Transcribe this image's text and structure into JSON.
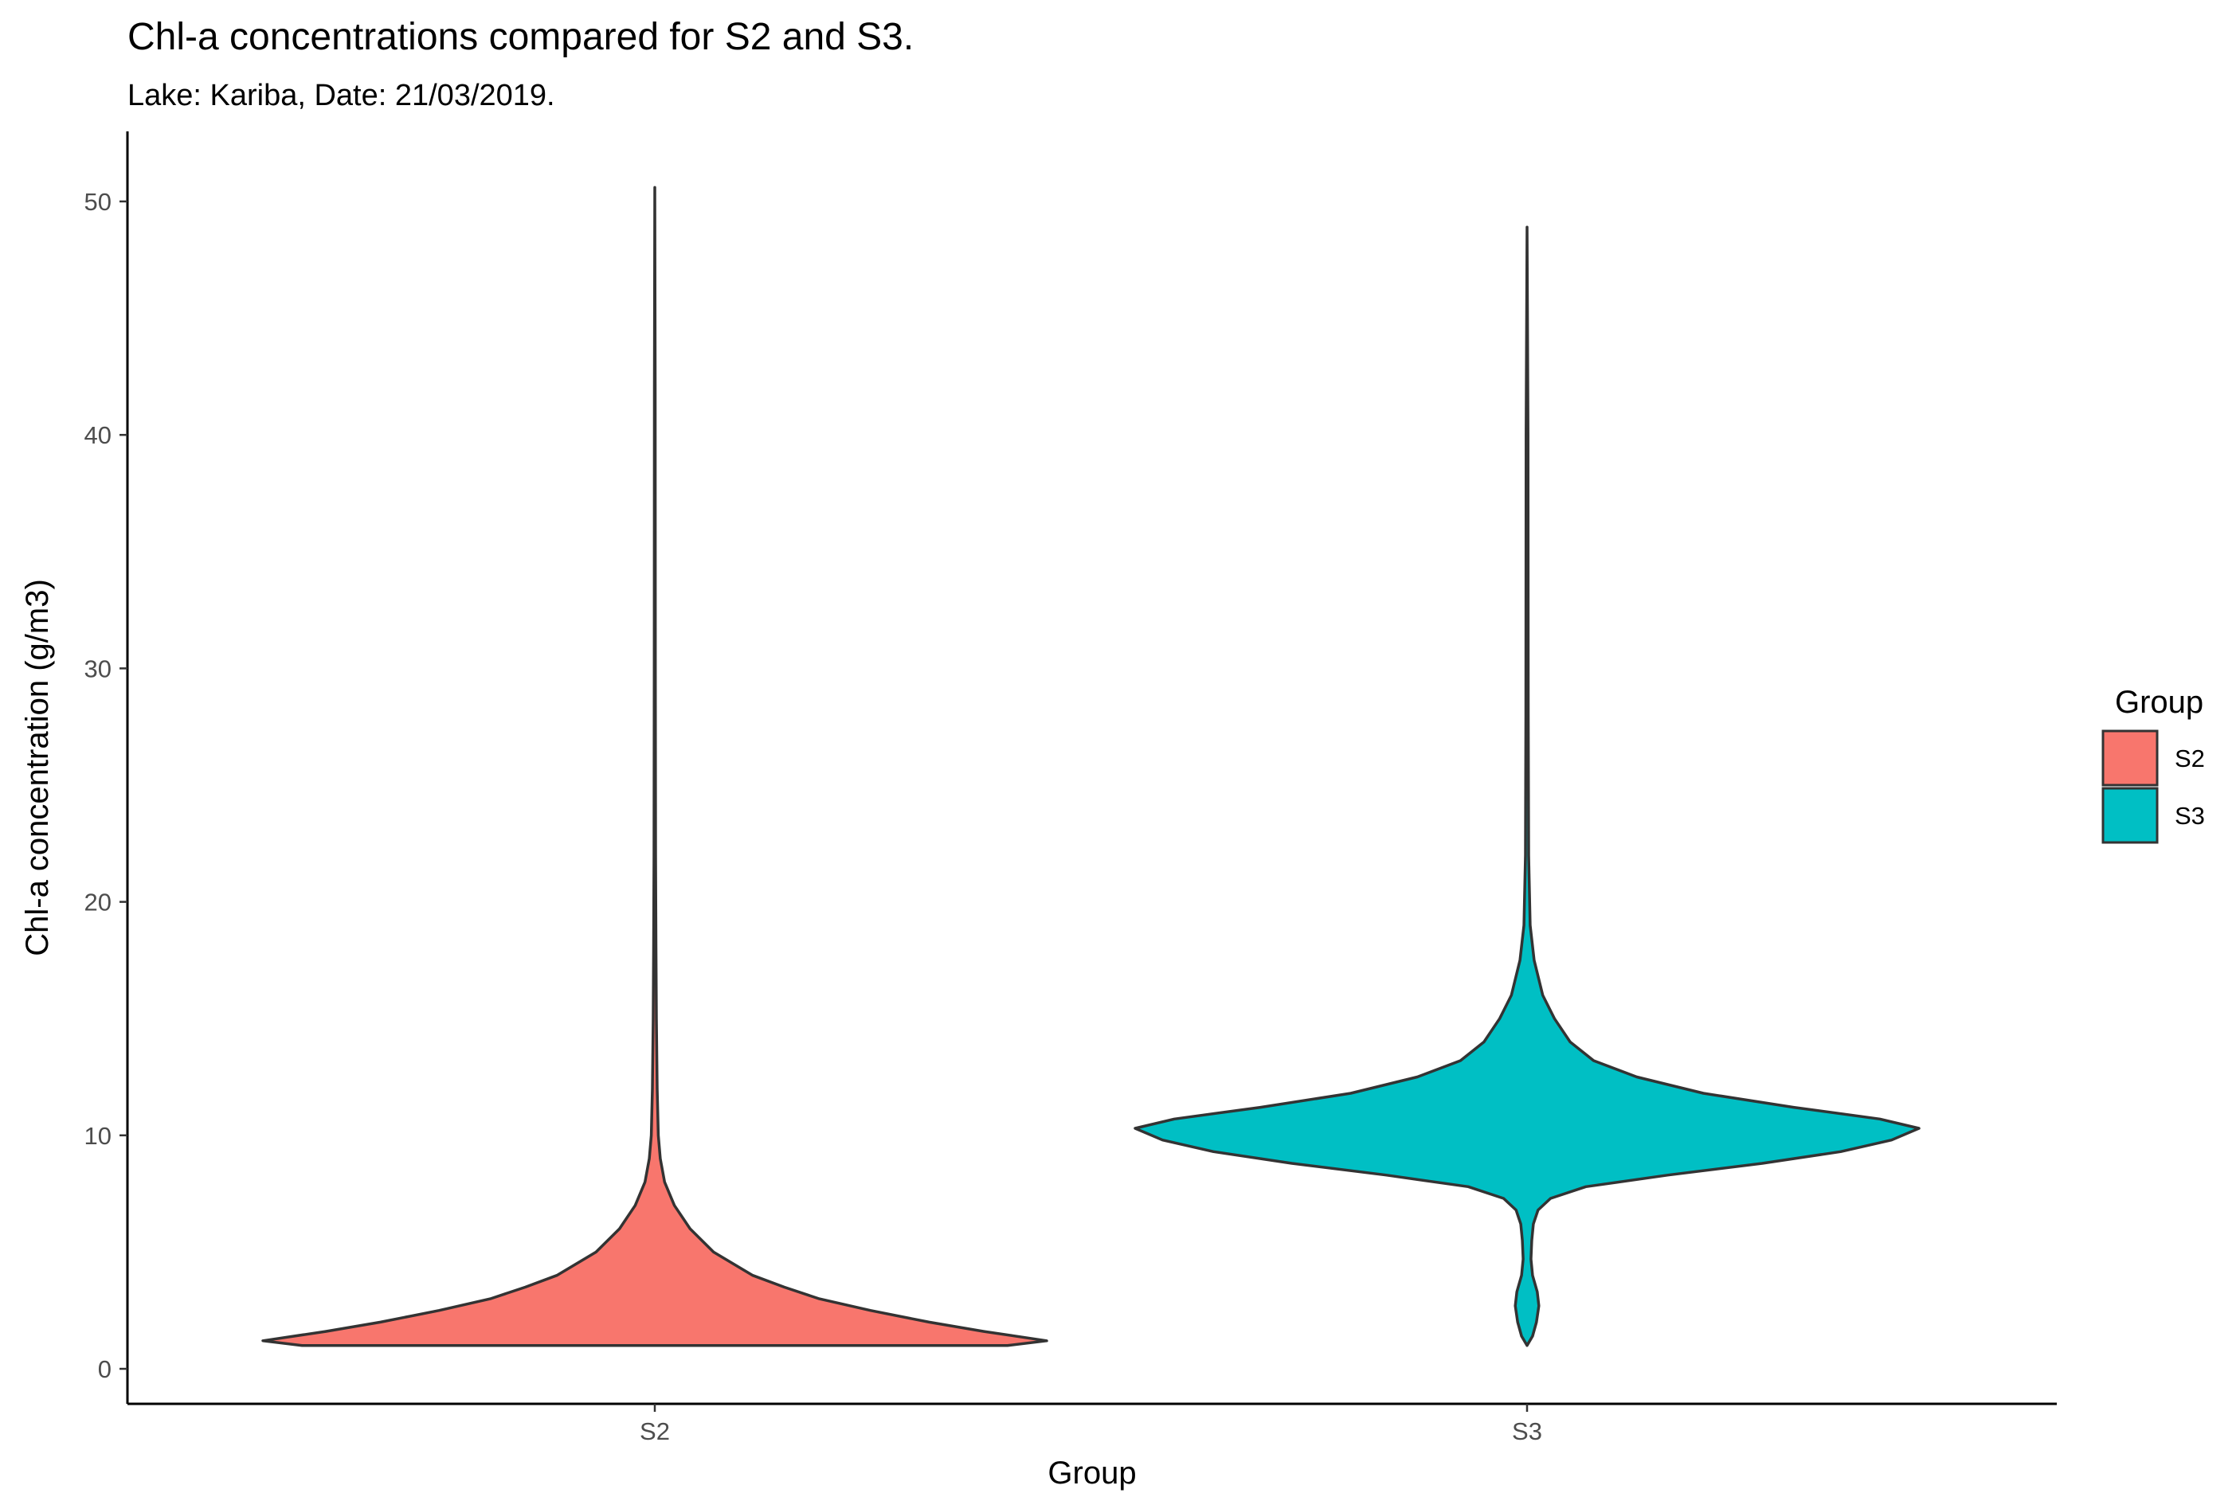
{
  "chart_data": {
    "type": "violin",
    "title": "Chl-a concentrations compared for S2 and S3.",
    "subtitle": "Lake: Kariba, Date: 21/03/2019.",
    "xlabel": "Group",
    "ylabel": "Chl-a concentration  (g/m3)",
    "categories": [
      "S2",
      "S3"
    ],
    "y_ticks": [
      0,
      10,
      20,
      30,
      40,
      50
    ],
    "ylim": [
      -1.5,
      53.0
    ],
    "grid": false,
    "legend": {
      "title": "Group",
      "position": "right",
      "entries": [
        {
          "label": "S2",
          "color": "#F8766D"
        },
        {
          "label": "S3",
          "color": "#00BFC4"
        }
      ]
    },
    "series": [
      {
        "name": "S2",
        "color": "#F8766D",
        "min": 1.0,
        "max": 50.6,
        "density_profile": [
          [
            1.0,
            0.9
          ],
          [
            1.2,
            1.0
          ],
          [
            1.6,
            0.84
          ],
          [
            2.0,
            0.7
          ],
          [
            2.5,
            0.55
          ],
          [
            3.0,
            0.42
          ],
          [
            3.5,
            0.33
          ],
          [
            4.0,
            0.25
          ],
          [
            5.0,
            0.15
          ],
          [
            6.0,
            0.09
          ],
          [
            7.0,
            0.05
          ],
          [
            8.0,
            0.025
          ],
          [
            9.0,
            0.014
          ],
          [
            10.0,
            0.009
          ],
          [
            12.0,
            0.006
          ],
          [
            15.0,
            0.004
          ],
          [
            18.0,
            0.003
          ],
          [
            22.0,
            0.002
          ],
          [
            30.0,
            0.0015
          ],
          [
            42.0,
            0.001
          ],
          [
            50.6,
            0.0
          ]
        ]
      },
      {
        "name": "S3",
        "color": "#00BFC4",
        "min": 1.0,
        "max": 48.9,
        "density_profile": [
          [
            1.0,
            0.0
          ],
          [
            1.4,
            0.014
          ],
          [
            2.0,
            0.024
          ],
          [
            2.7,
            0.03
          ],
          [
            3.3,
            0.026
          ],
          [
            4.0,
            0.014
          ],
          [
            4.7,
            0.01
          ],
          [
            5.5,
            0.012
          ],
          [
            6.2,
            0.016
          ],
          [
            6.8,
            0.028
          ],
          [
            7.3,
            0.06
          ],
          [
            7.8,
            0.15
          ],
          [
            8.3,
            0.36
          ],
          [
            8.8,
            0.6
          ],
          [
            9.3,
            0.8
          ],
          [
            9.8,
            0.93
          ],
          [
            10.3,
            1.0
          ],
          [
            10.7,
            0.9
          ],
          [
            11.2,
            0.68
          ],
          [
            11.8,
            0.45
          ],
          [
            12.5,
            0.28
          ],
          [
            13.2,
            0.17
          ],
          [
            14.0,
            0.11
          ],
          [
            15.0,
            0.07
          ],
          [
            16.0,
            0.04
          ],
          [
            17.5,
            0.018
          ],
          [
            19.0,
            0.008
          ],
          [
            22.0,
            0.004
          ],
          [
            28.0,
            0.003
          ],
          [
            40.0,
            0.0025
          ],
          [
            48.9,
            0.0
          ]
        ]
      }
    ]
  }
}
